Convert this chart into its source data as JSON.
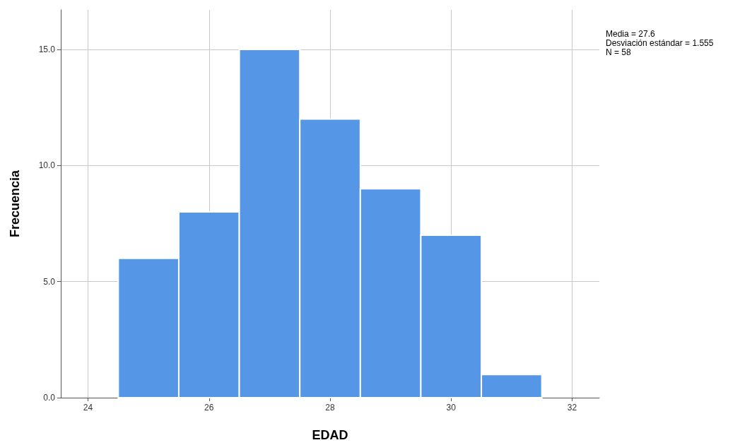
{
  "chart_data": {
    "type": "histogram",
    "xlabel": "EDAD",
    "ylabel": "Frecuencia",
    "bins": [
      24.5,
      25.5,
      26.5,
      27.5,
      28.5,
      29.5,
      30.5,
      31.5
    ],
    "values": [
      6,
      8,
      15,
      12,
      9,
      7,
      1
    ],
    "color": "#5596e6",
    "xlim": [
      23.55,
      32.45
    ],
    "xticks": [
      24,
      26,
      28,
      30,
      32
    ],
    "ylim": [
      0,
      16.7
    ],
    "yticks": [
      {
        "value": 0,
        "label": "0.0"
      },
      {
        "value": 5,
        "label": "5.0"
      },
      {
        "value": 10,
        "label": "10.0"
      },
      {
        "value": 15,
        "label": "15.0"
      }
    ],
    "grid": true,
    "annotations": [
      "Media = 27.6",
      "Desviación estándar = 1.555",
      "N = 58"
    ]
  }
}
